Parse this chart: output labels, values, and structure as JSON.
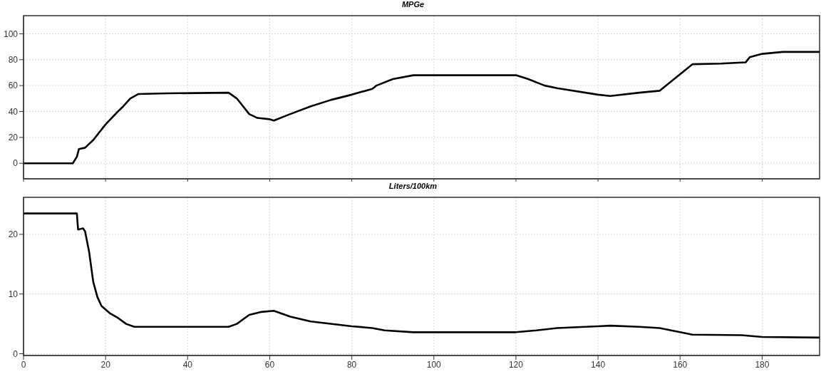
{
  "chart_data": [
    {
      "type": "line",
      "title": "MPGe",
      "xlim": [
        0,
        194
      ],
      "xticks": [
        0,
        20,
        40,
        60,
        80,
        100,
        120,
        140,
        160,
        180
      ],
      "ylim": [
        -12,
        114
      ],
      "yticks": [
        0,
        20,
        40,
        60,
        80,
        100
      ],
      "grid": true,
      "tick_labels": "y",
      "series": [
        {
          "color": "#000000",
          "x": [
            0,
            12,
            13,
            13.5,
            15,
            17,
            20,
            23,
            24,
            26,
            28,
            35,
            50,
            52,
            55,
            57,
            60,
            61,
            65,
            70,
            75,
            80,
            85,
            86,
            90,
            95,
            100,
            110,
            120,
            123,
            127,
            130,
            140,
            143,
            150,
            155,
            163,
            170,
            176,
            177,
            180,
            185,
            194
          ],
          "values": [
            0,
            0,
            5,
            11,
            12,
            18,
            30,
            40,
            43,
            50,
            53.5,
            54,
            54.5,
            50,
            38,
            35,
            34,
            33,
            38,
            44,
            49,
            53,
            57.5,
            60,
            65,
            68,
            68,
            68,
            68,
            65,
            60,
            58,
            53,
            52,
            54.5,
            56,
            76.5,
            77,
            78,
            82,
            84.5,
            86,
            86
          ]
        }
      ]
    },
    {
      "type": "line",
      "title": "Liters/100km",
      "xlim": [
        0,
        194
      ],
      "xticks": [
        0,
        20,
        40,
        60,
        80,
        100,
        120,
        140,
        160,
        180
      ],
      "ylim": [
        -0.3,
        26.2
      ],
      "yticks": [
        0,
        10,
        20
      ],
      "grid": true,
      "series": [
        {
          "color": "#000000",
          "x": [
            0,
            13,
            13.3,
            14.5,
            15,
            16,
            17,
            18,
            19,
            21,
            23,
            25,
            27,
            35,
            50,
            52,
            55,
            58,
            61,
            65,
            70,
            80,
            85,
            88,
            95,
            120,
            125,
            130,
            140,
            143,
            150,
            155,
            160,
            163,
            175,
            180,
            194
          ],
          "values": [
            23.5,
            23.5,
            20.8,
            21,
            20.5,
            17,
            12,
            9.5,
            8,
            6.8,
            6,
            5,
            4.5,
            4.5,
            4.5,
            5,
            6.5,
            7,
            7.2,
            6.2,
            5.4,
            4.6,
            4.3,
            3.9,
            3.6,
            3.6,
            3.9,
            4.3,
            4.6,
            4.7,
            4.5,
            4.3,
            3.6,
            3.2,
            3.1,
            2.8,
            2.7
          ]
        }
      ]
    }
  ]
}
